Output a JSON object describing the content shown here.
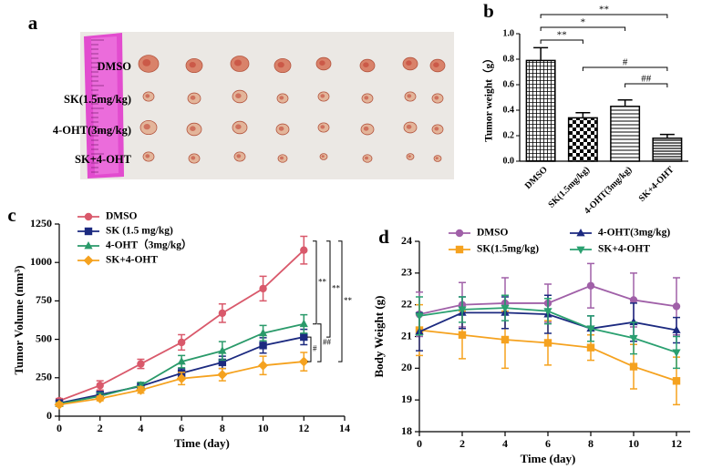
{
  "photo": {
    "label": "a",
    "rows": [
      "DMSO",
      "SK(1.5mg/kg)",
      "4-OHT(3mg/kg)",
      "SK+4-OHT"
    ]
  },
  "chart_data": [
    {
      "panel": "b",
      "type": "bar",
      "categories": [
        "DMSO",
        "SK(1.5mg/kg)",
        "4-OHT(3mg/kg)",
        "SK+4-OHT"
      ],
      "values": [
        0.79,
        0.34,
        0.43,
        0.18
      ],
      "errors": [
        0.1,
        0.04,
        0.05,
        0.03
      ],
      "patterns": [
        "grid",
        "check",
        "hlines",
        "dense"
      ],
      "color": "#000000",
      "ylabel": "Tumor weight（g）",
      "ylim": [
        0,
        1.0
      ],
      "yticks": [
        {
          "value": 0,
          "label": "0.0"
        },
        0.2,
        0.4,
        0.6,
        0.8,
        {
          "value": 1,
          "label": "1.0"
        }
      ],
      "annotations": [
        {
          "text": "**",
          "from": 0,
          "to": 1
        },
        {
          "text": "*",
          "from": 0,
          "to": 2
        },
        {
          "text": "**",
          "from": 0,
          "to": 3
        },
        {
          "text": "#",
          "from": 1,
          "to": 3
        },
        {
          "text": "##",
          "from": 2,
          "to": 3
        }
      ]
    },
    {
      "panel": "c",
      "type": "line",
      "xlabel": "Time (day)",
      "ylabel": "Tumor Volume (mm³)",
      "x": [
        0,
        2,
        4,
        6,
        8,
        10,
        12
      ],
      "xlim": [
        0,
        14
      ],
      "xticks": [
        0,
        2,
        4,
        6,
        8,
        10,
        12,
        14
      ],
      "ylim": [
        0,
        1250
      ],
      "yticks": [
        0,
        250,
        500,
        750,
        1000,
        1250
      ],
      "legend": "upper left",
      "series": [
        {
          "name": "DMSO",
          "color": "#d9596b",
          "marker": "circle",
          "values": [
            100,
            200,
            340,
            480,
            670,
            830,
            1080
          ],
          "errors": [
            15,
            30,
            30,
            50,
            60,
            80,
            90
          ]
        },
        {
          "name": "SK (1.5 mg/kg)",
          "color": "#1c2a80",
          "marker": "square",
          "values": [
            85,
            140,
            195,
            280,
            350,
            460,
            515
          ],
          "errors": [
            10,
            20,
            20,
            30,
            40,
            50,
            50
          ]
        },
        {
          "name": "4-OHT（3mg/kg）",
          "color": "#2a9a6a",
          "marker": "triangle",
          "values": [
            80,
            130,
            200,
            355,
            425,
            540,
            600
          ],
          "errors": [
            10,
            20,
            20,
            40,
            60,
            50,
            60
          ]
        },
        {
          "name": "SK+4-OHT",
          "color": "#f5a21f",
          "marker": "diamond",
          "values": [
            75,
            115,
            170,
            245,
            270,
            330,
            355
          ],
          "errors": [
            10,
            15,
            20,
            40,
            40,
            60,
            60
          ]
        }
      ],
      "annotations": [
        {
          "text": "**",
          "from": 0,
          "to": 2
        },
        {
          "text": "**",
          "from": 0,
          "to": 1
        },
        {
          "text": "**",
          "from": 0,
          "to": 3
        },
        {
          "text": "#",
          "from": 1,
          "to": 3
        },
        {
          "text": "##",
          "from": 2,
          "to": 3
        }
      ]
    },
    {
      "panel": "d",
      "type": "line",
      "xlabel": "Time (day)",
      "ylabel": "Body Weight (g)",
      "x": [
        0,
        2,
        4,
        6,
        8,
        10,
        12
      ],
      "xlim": [
        0,
        12
      ],
      "xticks": [
        0,
        2,
        4,
        6,
        8,
        10,
        12
      ],
      "ylim": [
        18,
        24
      ],
      "yticks": [
        18,
        19,
        20,
        21,
        22,
        23,
        24
      ],
      "legend": "upper center",
      "series": [
        {
          "name": "DMSO",
          "color": "#a060a8",
          "marker": "circle",
          "values": [
            21.7,
            22.0,
            22.05,
            22.05,
            22.6,
            22.15,
            21.95
          ],
          "errors": [
            0.7,
            0.7,
            0.8,
            0.6,
            0.7,
            0.85,
            0.9
          ]
        },
        {
          "name": "SK(1.5mg/kg)",
          "color": "#f5a21f",
          "marker": "square",
          "values": [
            21.2,
            21.05,
            20.9,
            20.8,
            20.65,
            20.05,
            19.6
          ],
          "errors": [
            0.8,
            0.75,
            0.9,
            0.7,
            0.4,
            0.7,
            0.75
          ]
        },
        {
          "name": "4-OHT(3mg/kg)",
          "color": "#1c2a80",
          "marker": "triangle",
          "values": [
            21.15,
            21.75,
            21.75,
            21.7,
            21.25,
            21.45,
            21.2
          ],
          "errors": [
            0.6,
            0.5,
            0.5,
            0.6,
            0.4,
            0.6,
            0.4
          ]
        },
        {
          "name": "SK+4-OHT",
          "color": "#2aa070",
          "marker": "triangle-down",
          "values": [
            21.65,
            21.85,
            21.9,
            21.8,
            21.25,
            20.95,
            20.5
          ],
          "errors": [
            0.6,
            0.4,
            0.4,
            0.4,
            0.4,
            0.5,
            0.5
          ]
        }
      ]
    }
  ]
}
